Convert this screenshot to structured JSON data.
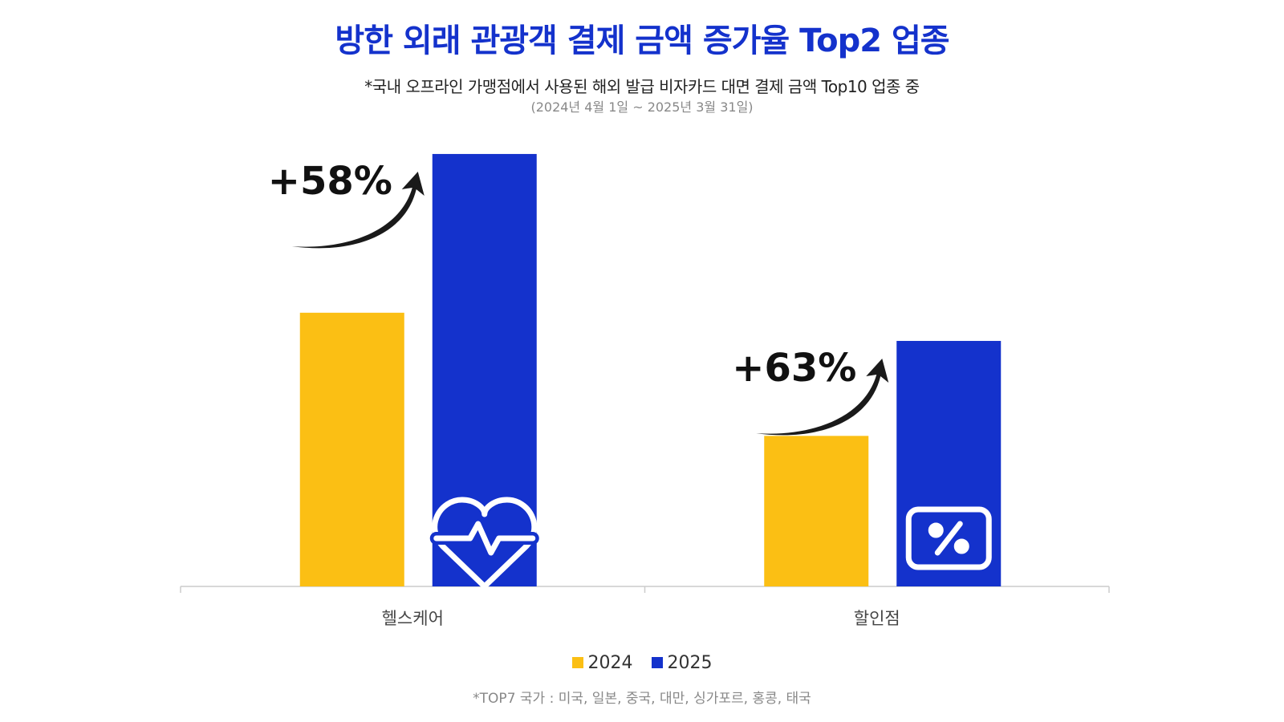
{
  "title": "방한 외래 관광객 결제 금액 증가율 Top2 업종",
  "subtitle": "*국내 오프라인 가맹점에서 사용된 해외 발급 비자카드 대면 결제 금액 Top10 업종 중",
  "period": "(2024년 4월 1일 ~ 2025년 3월 31일)",
  "footnote": "*TOP7 국가 : 미국, 일본, 중국, 대만, 싱가포르, 홍콩, 태국",
  "colors": {
    "2024": "#fbbf14",
    "2025": "#1432cc",
    "axis": "#cccccc"
  },
  "chart_data": {
    "type": "bar",
    "title": "방한 외래 관광객 결제 금액 증가율 Top2 업종",
    "categories": [
      "헬스케어",
      "할인점"
    ],
    "series": [
      {
        "name": "2024",
        "values": [
          100,
          55
        ]
      },
      {
        "name": "2025",
        "values": [
          158,
          89.7
        ]
      }
    ],
    "annotations": [
      "+58%",
      "+63%"
    ],
    "icons": [
      "heart-pulse-icon",
      "percent-tag-icon"
    ],
    "ylim": [
      0,
      170
    ],
    "xlabel": "",
    "ylabel": "",
    "grid": false,
    "legend": "bottom"
  }
}
